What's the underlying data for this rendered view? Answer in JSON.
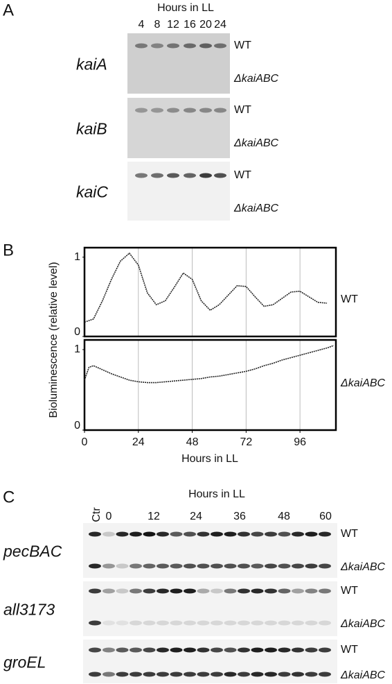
{
  "panel_a": {
    "label": "A",
    "header": "Hours in LL",
    "hours": [
      "4",
      "8",
      "12",
      "16",
      "20",
      "24"
    ],
    "genes": [
      "kaiA",
      "kaiB",
      "kaiC"
    ],
    "strains": [
      "WT",
      "ΔkaiABC"
    ]
  },
  "panel_b": {
    "label": "B",
    "y_label": "Bioluminescence (relative level)",
    "x_label": "Hours in LL"
  },
  "chart_data": [
    {
      "type": "line",
      "xlim": [
        0,
        112
      ],
      "ylim": [
        0,
        1.12
      ],
      "yticks": [
        0,
        1
      ],
      "grid": true,
      "series": [
        {
          "name": "WT",
          "color": "#222",
          "x": [
            0,
            4,
            8,
            12,
            16,
            20,
            24,
            28,
            32,
            36,
            40,
            44,
            48,
            52,
            56,
            60,
            64,
            68,
            72,
            76,
            80,
            84,
            88,
            92,
            96,
            100,
            104,
            108
          ],
          "values": [
            0.18,
            0.22,
            0.45,
            0.72,
            0.95,
            1.05,
            0.9,
            0.55,
            0.4,
            0.45,
            0.62,
            0.8,
            0.72,
            0.45,
            0.33,
            0.4,
            0.52,
            0.64,
            0.63,
            0.5,
            0.38,
            0.4,
            0.48,
            0.56,
            0.57,
            0.5,
            0.43,
            0.42
          ]
        }
      ]
    },
    {
      "type": "line",
      "xlim": [
        0,
        112
      ],
      "ylim": [
        0,
        1.12
      ],
      "yticks": [
        0,
        1
      ],
      "xticks": [
        0,
        24,
        48,
        72,
        96
      ],
      "grid": true,
      "series": [
        {
          "name": "ΔkaiABC",
          "color": "#222",
          "x": [
            0,
            2,
            4,
            8,
            12,
            16,
            20,
            24,
            28,
            32,
            36,
            40,
            44,
            48,
            52,
            56,
            60,
            64,
            68,
            72,
            76,
            80,
            84,
            88,
            92,
            96,
            100,
            104,
            108,
            111
          ],
          "values": [
            0.62,
            0.78,
            0.8,
            0.75,
            0.7,
            0.66,
            0.62,
            0.6,
            0.59,
            0.59,
            0.6,
            0.61,
            0.62,
            0.63,
            0.64,
            0.66,
            0.67,
            0.69,
            0.71,
            0.73,
            0.76,
            0.8,
            0.83,
            0.87,
            0.9,
            0.93,
            0.96,
            0.99,
            1.02,
            1.05
          ]
        }
      ]
    }
  ],
  "panel_c": {
    "label": "C",
    "header": "Hours in LL",
    "lanes": [
      "Ctr",
      "0",
      "12",
      "24",
      "36",
      "48",
      "60"
    ],
    "genes": [
      "pecBAC",
      "all3173",
      "groEL"
    ],
    "strains": [
      "WT",
      "ΔkaiABC"
    ]
  }
}
